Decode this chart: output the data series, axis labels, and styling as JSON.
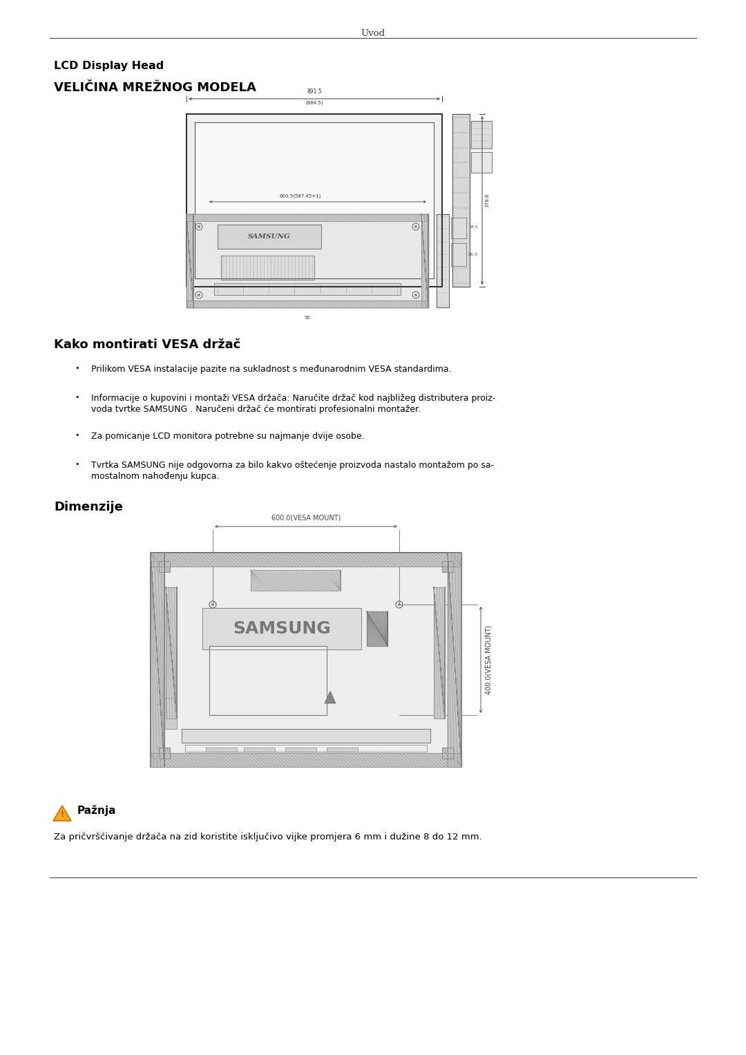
{
  "page_header": "Uvod",
  "title1": "LCD Display Head",
  "title2": "VELIČINA MREŽNOG MODELA",
  "section2_title": "Kako montirati VESA držač",
  "bullet1": "Prilikom VESA instalacije pazite na sukladnost s međunarodnim VESA standardima.",
  "bullet2_line1": "Informacije o kupovini i montaži VESA držača: Naručite držač kod najbližeg distributera proiz-",
  "bullet2_line2": "voda tvrtke SAMSUNG . Naručeni držač će montirati profesionalni montažer.",
  "bullet3": "Za pomicanje LCD monitora potrebne su najmanje dvije osobe.",
  "bullet4_line1": "Tvrtka SAMSUNG nije odgovorna za bilo kakvo oštećenje proizvoda nastalo montažom po sa-",
  "bullet4_line2": "mostalnom nahođenju kupca.",
  "section3_title": "Dimenzije",
  "caution_title": "Pažnja",
  "caution_text": "Za pričvršćivanje držača na zid koristite isključivo vijke promjera 6 mm i dužine 8 do 12 mm.",
  "bg_color": "#ffffff",
  "text_color": "#000000",
  "dim_color": "#444444",
  "diag_line_color": "#555555"
}
